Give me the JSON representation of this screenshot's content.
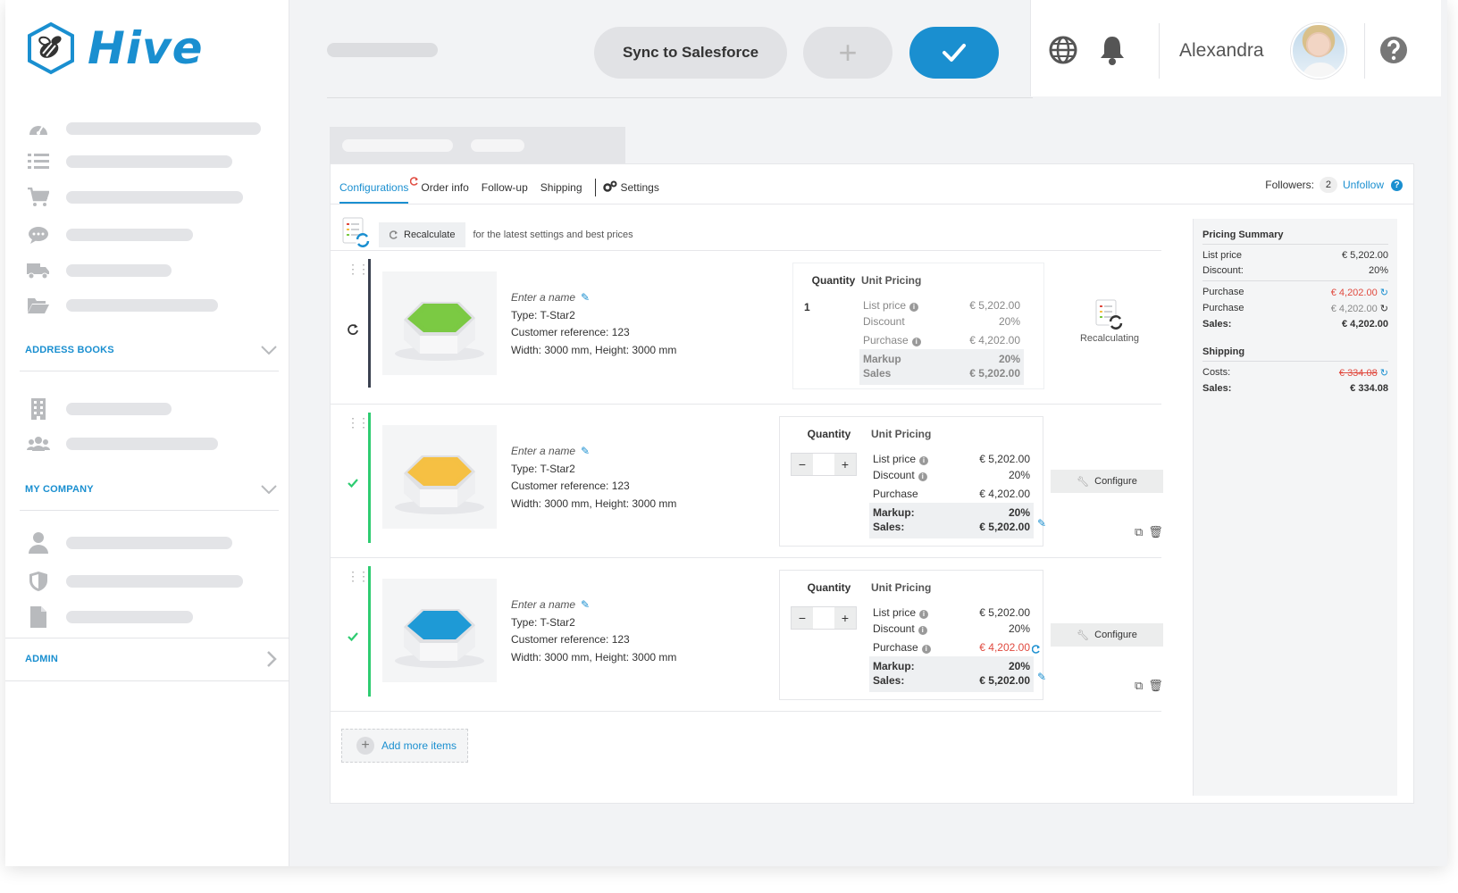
{
  "app": {
    "name": "Hive"
  },
  "header": {
    "sync_label": "Sync to Salesforce",
    "plus_label": "+",
    "user_name": "Alexandra"
  },
  "sidebar": {
    "address_books": "ADDRESS BOOKS",
    "my_company": "MY COMPANY",
    "admin": "ADMIN"
  },
  "tabs": [
    "Configurations",
    "Order info",
    "Follow-up",
    "Shipping",
    "Settings"
  ],
  "followers": {
    "label": "Followers:",
    "count": "2",
    "unfollow": "Unfollow"
  },
  "recalc": {
    "button": "Recalculate",
    "hint": "for the latest settings and best prices"
  },
  "pricing_labels": {
    "quantity": "Quantity",
    "unit_pricing": "Unit Pricing",
    "list_price": "List price",
    "discount": "Discount",
    "purchase": "Purchase",
    "markup": "Markup",
    "markup_colon": "Markup:",
    "sales": "Sales",
    "sales_colon": "Sales:"
  },
  "items": [
    {
      "name_placeholder": "Enter a name",
      "type": "Type: T-Star2",
      "customer_ref": "Customer reference: 123",
      "dimensions": "Width: 3000 mm, Height: 3000 mm",
      "quantity": "1",
      "list_price": "€ 5,202.00",
      "discount": "20%",
      "purchase": "€ 4,202.00",
      "markup": "20%",
      "sales": "€ 5,202.00",
      "state_label": "Recalculating",
      "hex_color": "#7bc943"
    },
    {
      "name_placeholder": "Enter a name",
      "type": "Type: T-Star2",
      "customer_ref": "Customer reference: 123",
      "dimensions": "Width: 3000 mm, Height: 3000 mm",
      "list_price": "€ 5,202.00",
      "discount": "20%",
      "purchase": "€ 4,202.00",
      "markup": "20%",
      "sales": "€ 5,202.00",
      "action_label": "Configure",
      "hex_color": "#f5c043"
    },
    {
      "name_placeholder": "Enter a name",
      "type": "Type: T-Star2",
      "customer_ref": "Customer reference: 123",
      "dimensions": "Width: 3000 mm, Height: 3000 mm",
      "list_price": "€ 5,202.00",
      "discount": "20%",
      "purchase": "€ 4,202.00",
      "markup": "20%",
      "sales": "€ 5,202.00",
      "action_label": "Configure",
      "hex_color": "#1f9ad6"
    }
  ],
  "add_more": "Add more items",
  "summary": {
    "title": "Pricing Summary",
    "list_price_label": "List price",
    "list_price": "€ 5,202.00",
    "discount_label": "Discount:",
    "discount": "20%",
    "purchase_label": "Purchase",
    "purchase_1": "€ 4,202.00",
    "purchase_2": "€ 4,202.00",
    "sales_label": "Sales:",
    "sales": "€ 4,202.00",
    "shipping_title": "Shipping",
    "costs_label": "Costs:",
    "costs": "€ 334.08",
    "ship_sales_label": "Sales:",
    "ship_sales": "€ 334.08"
  },
  "colors": {
    "accent": "#1a8fd0",
    "success": "#2ecc71",
    "danger": "#e04a3f"
  }
}
